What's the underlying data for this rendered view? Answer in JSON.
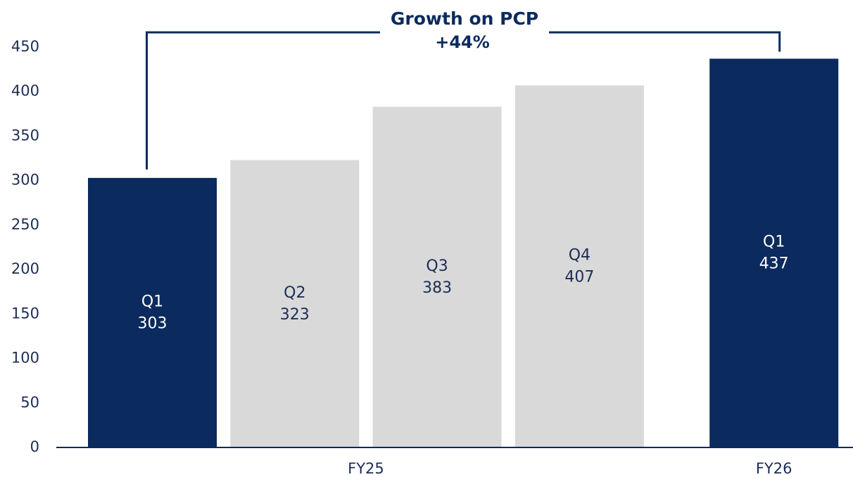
{
  "chart_data": {
    "type": "bar",
    "annotation": {
      "title": "Growth on PCP",
      "value": "+44%"
    },
    "groups": [
      {
        "name": "FY25",
        "categories": [
          "Q1",
          "Q2",
          "Q3",
          "Q4"
        ],
        "values": [
          303,
          323,
          383,
          407
        ],
        "colors": [
          "#0b2a5e",
          "#d9d9d9",
          "#d9d9d9",
          "#d9d9d9"
        ]
      },
      {
        "name": "FY26",
        "categories": [
          "Q1"
        ],
        "values": [
          437
        ],
        "colors": [
          "#0b2a5e"
        ]
      }
    ],
    "ylim": [
      0,
      450
    ],
    "yticks": [
      0,
      50,
      100,
      150,
      200,
      250,
      300,
      350,
      400,
      450
    ],
    "grid": false
  }
}
